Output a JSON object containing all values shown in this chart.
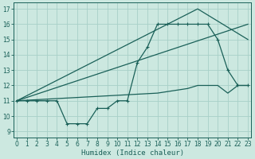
{
  "xlabel": "Humidex (Indice chaleur)",
  "bg_color": "#cce8e0",
  "grid_color": "#a8d0c8",
  "line_color": "#1a6058",
  "xlim": [
    -0.3,
    23.3
  ],
  "ylim": [
    8.6,
    17.4
  ],
  "xticks": [
    0,
    1,
    2,
    3,
    4,
    5,
    6,
    7,
    8,
    9,
    10,
    11,
    12,
    13,
    14,
    15,
    16,
    17,
    18,
    19,
    20,
    21,
    22,
    23
  ],
  "yticks": [
    9,
    10,
    11,
    12,
    13,
    14,
    15,
    16,
    17
  ],
  "line1_x": [
    0,
    1,
    2,
    3,
    4,
    5,
    6,
    7,
    8,
    9,
    10,
    11,
    12,
    13,
    14,
    15,
    16,
    17,
    18,
    19,
    20,
    21,
    22,
    23
  ],
  "line1_y": [
    11,
    11,
    11,
    11,
    11,
    9.5,
    9.5,
    9.5,
    10.5,
    10.5,
    11,
    11,
    13.5,
    14.5,
    16,
    16,
    16,
    16,
    16,
    16,
    15,
    13,
    12,
    12
  ],
  "line2_x": [
    0,
    23
  ],
  "line2_y": [
    11,
    16
  ],
  "line3_x": [
    0,
    18,
    23
  ],
  "line3_y": [
    11,
    17,
    15
  ],
  "line4_x": [
    0,
    14,
    15,
    16,
    17,
    18,
    19,
    20,
    21,
    22,
    23
  ],
  "line4_y": [
    11,
    11.5,
    11.6,
    11.7,
    11.8,
    12,
    12,
    12,
    11.5,
    12,
    12
  ],
  "marker": "+",
  "markersize": 3.5,
  "markeredgewidth": 0.8,
  "linewidth": 0.9,
  "tick_fontsize": 5.5,
  "xlabel_fontsize": 6.5
}
